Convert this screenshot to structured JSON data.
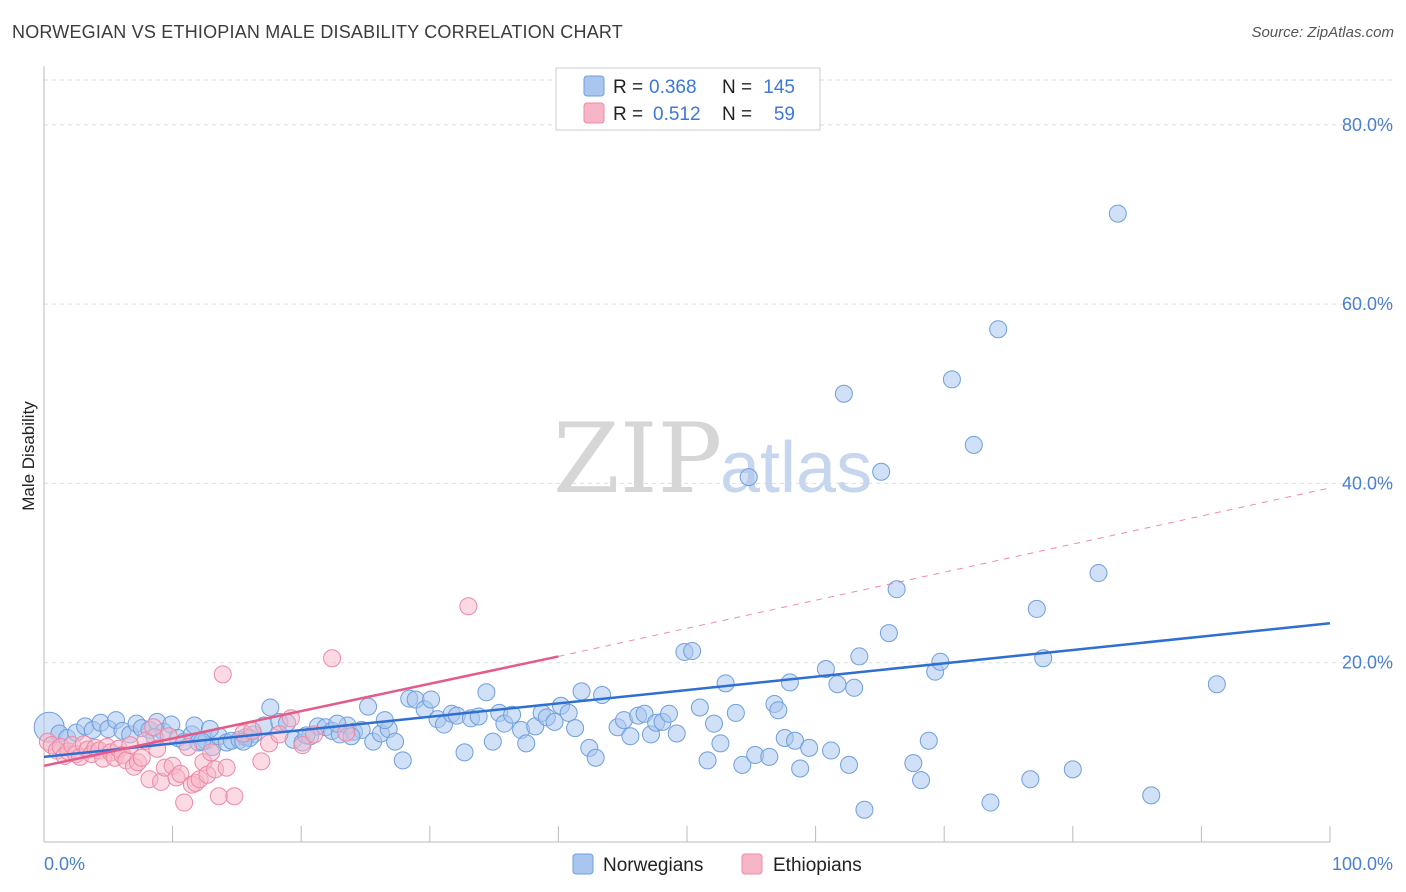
{
  "title": "NORWEGIAN VS ETHIOPIAN MALE DISABILITY CORRELATION CHART",
  "source": "Source: ZipAtlas.com",
  "watermark": {
    "zip": "ZIP",
    "atlas": "atlas"
  },
  "colors": {
    "norwegian_fill": "#a9c6ef",
    "norwegian_stroke": "#6f9fdd",
    "norwegian_line": "#2f6fd1",
    "ethiopian_fill": "#f7b6c8",
    "ethiopian_stroke": "#ec88a6",
    "ethiopian_line": "#e55a88",
    "axis_label": "#4a7fd0",
    "grid": "#dddddd"
  },
  "legend": {
    "rows": [
      {
        "r_label": "R =",
        "r_value": "0.368",
        "n_label": "N =",
        "n_value": "145"
      },
      {
        "r_label": "R =",
        "r_value": "0.512",
        "n_label": "N =",
        "n_value": "59"
      }
    ]
  },
  "chart_data": {
    "type": "scatter",
    "title": "NORWEGIAN VS ETHIOPIAN MALE DISABILITY CORRELATION CHART",
    "xlabel": "",
    "ylabel": "Male Disability",
    "xlim": [
      0,
      100
    ],
    "ylim": [
      0,
      85
    ],
    "x_tick_labels": [
      "0.0%",
      "100.0%"
    ],
    "y_ticks": [
      20,
      40,
      60,
      80
    ],
    "y_tick_labels": [
      "20.0%",
      "40.0%",
      "60.0%",
      "80.0%"
    ],
    "legend_entries": [
      "Norwegians",
      "Ethiopians"
    ],
    "series": [
      {
        "name": "Norwegians",
        "r": 0.368,
        "n": 145,
        "trend": {
          "x0": 0,
          "y0": 9.5,
          "x1": 100,
          "y1": 24.4
        },
        "points": [
          [
            0.4,
            12.8
          ],
          [
            1.2,
            12.1
          ],
          [
            1.8,
            11.6
          ],
          [
            2.5,
            12.2
          ],
          [
            3.2,
            12.9
          ],
          [
            3.8,
            12.5
          ],
          [
            4.4,
            13.3
          ],
          [
            5.0,
            12.6
          ],
          [
            5.6,
            13.6
          ],
          [
            6.1,
            12.4
          ],
          [
            6.7,
            12.0
          ],
          [
            7.2,
            13.2
          ],
          [
            7.6,
            12.7
          ],
          [
            8.2,
            12.5
          ],
          [
            8.8,
            13.4
          ],
          [
            9.3,
            12.3
          ],
          [
            9.9,
            13.1
          ],
          [
            10.4,
            11.6
          ],
          [
            10.9,
            11.2
          ],
          [
            11.5,
            12.0
          ],
          [
            12.0,
            11.1
          ],
          [
            12.6,
            11.3
          ],
          [
            13.1,
            10.6
          ],
          [
            13.6,
            11.8
          ],
          [
            14.2,
            11.1
          ],
          [
            14.6,
            11.3
          ],
          [
            15.2,
            11.4
          ],
          [
            15.7,
            11.7
          ],
          [
            16.3,
            12.0
          ],
          [
            17.1,
            13.0
          ],
          [
            17.6,
            15.0
          ],
          [
            18.3,
            13.4
          ],
          [
            18.9,
            13.3
          ],
          [
            19.4,
            11.4
          ],
          [
            20.1,
            11.1
          ],
          [
            20.7,
            11.8
          ],
          [
            21.3,
            12.9
          ],
          [
            21.9,
            12.8
          ],
          [
            22.4,
            12.4
          ],
          [
            23.0,
            12.0
          ],
          [
            23.6,
            13.0
          ],
          [
            24.1,
            12.3
          ],
          [
            24.7,
            12.5
          ],
          [
            25.2,
            15.1
          ],
          [
            25.6,
            11.2
          ],
          [
            26.2,
            12.1
          ],
          [
            26.8,
            12.6
          ],
          [
            27.3,
            11.2
          ],
          [
            27.9,
            9.1
          ],
          [
            28.4,
            16.0
          ],
          [
            28.9,
            15.9
          ],
          [
            29.6,
            14.8
          ],
          [
            30.1,
            15.9
          ],
          [
            30.6,
            13.7
          ],
          [
            31.1,
            13.1
          ],
          [
            31.7,
            14.3
          ],
          [
            32.1,
            14.1
          ],
          [
            32.7,
            10.0
          ],
          [
            33.2,
            13.8
          ],
          [
            33.8,
            14.0
          ],
          [
            34.4,
            16.7
          ],
          [
            34.9,
            11.2
          ],
          [
            35.4,
            14.4
          ],
          [
            35.8,
            13.2
          ],
          [
            36.4,
            14.2
          ],
          [
            37.1,
            12.5
          ],
          [
            37.5,
            11.0
          ],
          [
            38.2,
            12.9
          ],
          [
            38.7,
            14.4
          ],
          [
            39.1,
            13.9
          ],
          [
            39.7,
            13.4
          ],
          [
            40.2,
            15.2
          ],
          [
            40.8,
            14.4
          ],
          [
            41.3,
            12.7
          ],
          [
            41.8,
            16.8
          ],
          [
            42.4,
            10.5
          ],
          [
            42.9,
            9.4
          ],
          [
            43.4,
            16.4
          ],
          [
            44.6,
            12.8
          ],
          [
            45.1,
            13.6
          ],
          [
            45.6,
            11.8
          ],
          [
            46.2,
            14.1
          ],
          [
            46.7,
            14.3
          ],
          [
            47.2,
            12.0
          ],
          [
            47.6,
            13.3
          ],
          [
            48.1,
            13.4
          ],
          [
            48.6,
            14.3
          ],
          [
            49.2,
            12.1
          ],
          [
            49.8,
            21.2
          ],
          [
            50.4,
            21.3
          ],
          [
            51.0,
            15.0
          ],
          [
            51.6,
            9.1
          ],
          [
            52.1,
            13.2
          ],
          [
            52.6,
            11.0
          ],
          [
            53.0,
            17.7
          ],
          [
            53.8,
            14.4
          ],
          [
            54.3,
            8.6
          ],
          [
            54.8,
            40.7
          ],
          [
            55.3,
            9.7
          ],
          [
            56.4,
            9.5
          ],
          [
            56.8,
            15.4
          ],
          [
            57.1,
            14.7
          ],
          [
            57.6,
            11.6
          ],
          [
            58.0,
            17.8
          ],
          [
            58.4,
            11.3
          ],
          [
            58.8,
            8.2
          ],
          [
            59.5,
            10.5
          ],
          [
            60.8,
            19.3
          ],
          [
            61.2,
            10.2
          ],
          [
            61.7,
            17.6
          ],
          [
            62.2,
            50.0
          ],
          [
            62.6,
            8.6
          ],
          [
            63.0,
            17.2
          ],
          [
            63.4,
            20.7
          ],
          [
            63.8,
            3.6
          ],
          [
            65.1,
            41.3
          ],
          [
            65.7,
            23.3
          ],
          [
            66.3,
            28.2
          ],
          [
            67.6,
            8.8
          ],
          [
            68.2,
            6.9
          ],
          [
            68.8,
            11.3
          ],
          [
            69.3,
            19.0
          ],
          [
            69.7,
            20.1
          ],
          [
            70.6,
            51.6
          ],
          [
            72.3,
            44.3
          ],
          [
            73.6,
            4.4
          ],
          [
            74.2,
            57.2
          ],
          [
            76.7,
            7.0
          ],
          [
            77.2,
            26.0
          ],
          [
            77.7,
            20.5
          ],
          [
            80.0,
            8.1
          ],
          [
            82.0,
            30.0
          ],
          [
            83.5,
            70.1
          ],
          [
            86.1,
            5.2
          ],
          [
            91.2,
            17.6
          ],
          [
            8.6,
            11.7
          ],
          [
            11.7,
            13.0
          ],
          [
            12.9,
            12.6
          ],
          [
            12.3,
            11.2
          ],
          [
            16.0,
            11.6
          ],
          [
            15.5,
            11.2
          ],
          [
            20.4,
            11.9
          ],
          [
            22.8,
            13.2
          ],
          [
            23.9,
            11.8
          ],
          [
            26.5,
            13.6
          ]
        ]
      },
      {
        "name": "Ethiopians",
        "r": 0.512,
        "n": 59,
        "trend": {
          "x0": 0,
          "y0": 8.5,
          "x1": 40,
          "y1": 20.7
        },
        "trend_dashed": {
          "x0": 40,
          "y0": 20.7,
          "x1": 100,
          "y1": 39.5
        },
        "points": [
          [
            0.3,
            11.2
          ],
          [
            0.6,
            10.8
          ],
          [
            1.0,
            10.2
          ],
          [
            1.3,
            10.6
          ],
          [
            1.6,
            9.6
          ],
          [
            1.9,
            10.1
          ],
          [
            2.2,
            10.8
          ],
          [
            2.5,
            9.8
          ],
          [
            2.8,
            9.5
          ],
          [
            3.1,
            10.9
          ],
          [
            3.4,
            10.3
          ],
          [
            3.7,
            9.8
          ],
          [
            4.0,
            10.5
          ],
          [
            4.3,
            10.2
          ],
          [
            4.6,
            9.3
          ],
          [
            4.9,
            10.6
          ],
          [
            5.2,
            10.0
          ],
          [
            5.5,
            9.4
          ],
          [
            5.8,
            10.4
          ],
          [
            6.1,
            9.7
          ],
          [
            6.4,
            9.1
          ],
          [
            6.7,
            10.8
          ],
          [
            7.0,
            8.4
          ],
          [
            7.3,
            8.9
          ],
          [
            7.6,
            9.4
          ],
          [
            7.9,
            11.3
          ],
          [
            8.2,
            7.0
          ],
          [
            8.5,
            12.8
          ],
          [
            8.8,
            10.4
          ],
          [
            9.1,
            6.7
          ],
          [
            9.4,
            8.3
          ],
          [
            9.7,
            11.8
          ],
          [
            10.0,
            8.5
          ],
          [
            10.3,
            7.2
          ],
          [
            10.6,
            7.6
          ],
          [
            10.9,
            4.4
          ],
          [
            11.2,
            10.6
          ],
          [
            11.5,
            6.4
          ],
          [
            11.8,
            6.6
          ],
          [
            12.1,
            7.0
          ],
          [
            12.4,
            8.9
          ],
          [
            12.7,
            7.5
          ],
          [
            13.0,
            10.0
          ],
          [
            13.3,
            8.1
          ],
          [
            13.6,
            5.1
          ],
          [
            13.9,
            18.7
          ],
          [
            14.2,
            8.3
          ],
          [
            14.8,
            5.1
          ],
          [
            15.5,
            12.1
          ],
          [
            16.2,
            12.4
          ],
          [
            16.9,
            9.0
          ],
          [
            17.5,
            11.0
          ],
          [
            18.3,
            12.0
          ],
          [
            19.2,
            13.8
          ],
          [
            20.1,
            10.8
          ],
          [
            21.0,
            12.0
          ],
          [
            22.4,
            20.5
          ],
          [
            23.5,
            12.2
          ],
          [
            33.0,
            26.3
          ]
        ]
      }
    ]
  },
  "bottom_legend": {
    "items": [
      "Norwegians",
      "Ethiopians"
    ]
  }
}
